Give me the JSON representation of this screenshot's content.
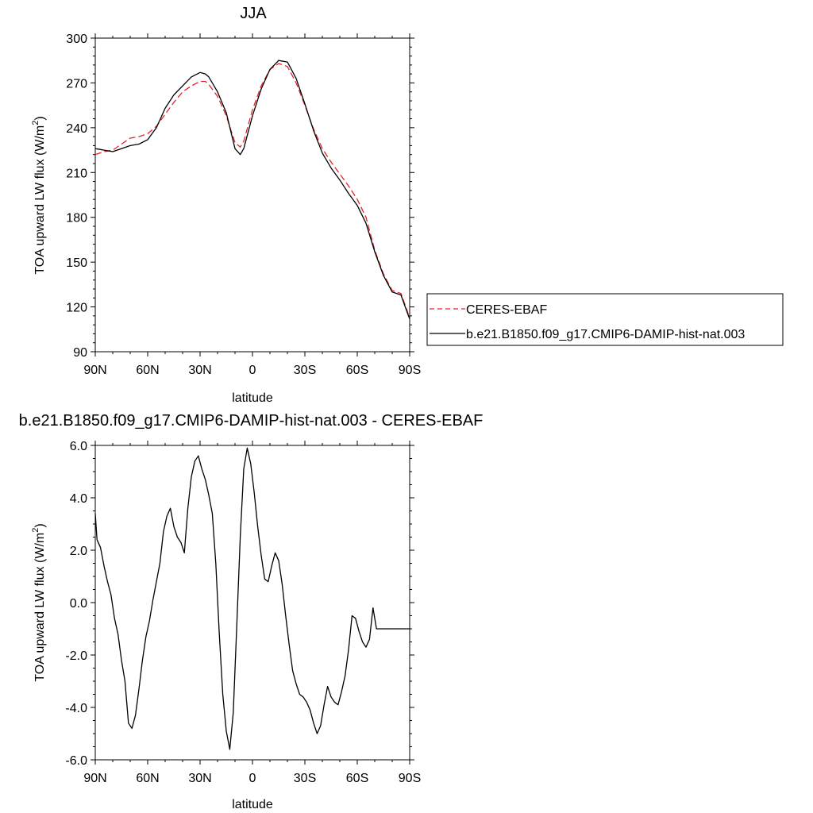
{
  "chart_data": [
    {
      "type": "line",
      "title": "JJA",
      "xlabel": "latitude",
      "ylabel": "TOA upward LW flux (W/m",
      "ylabel_sup": "2",
      "ylabel_end": ")",
      "xlim": [
        90,
        -90
      ],
      "ylim": [
        90,
        300
      ],
      "yticks": [
        90,
        120,
        150,
        180,
        210,
        240,
        270,
        300
      ],
      "ytick_labels": [
        "90",
        "120",
        "150",
        "180",
        "210",
        "240",
        "270",
        "300"
      ],
      "xticks": [
        90,
        60,
        30,
        0,
        -30,
        -60,
        -90
      ],
      "xtick_labels": [
        "90N",
        "60N",
        "30N",
        "0",
        "30S",
        "60S",
        "90S"
      ],
      "legend": "right",
      "series": [
        {
          "name": "CERES-EBAF",
          "color": "#e8202a",
          "dash": true,
          "x": [
            90,
            85,
            80,
            75,
            70,
            65,
            60,
            55,
            50,
            45,
            40,
            35,
            30,
            27,
            25,
            20,
            15,
            10,
            7,
            5,
            0,
            -5,
            -10,
            -15,
            -20,
            -25,
            -30,
            -35,
            -40,
            -45,
            -50,
            -55,
            -60,
            -65,
            -70,
            -75,
            -80,
            -85,
            -89,
            -90
          ],
          "y": [
            222,
            224,
            225,
            229,
            233,
            234,
            236,
            241,
            249,
            257,
            264,
            268,
            271,
            271,
            269,
            261,
            248,
            230,
            227,
            231,
            252,
            268,
            279,
            283,
            281,
            270,
            255,
            239,
            226,
            217,
            209,
            201,
            192,
            180,
            158,
            142,
            131,
            129,
            116,
            113
          ]
        },
        {
          "name": "b.e21.B1850.f09_g17.CMIP6-DAMIP-hist-nat.003",
          "color": "#000000",
          "dash": false,
          "x": [
            90,
            85,
            80,
            75,
            70,
            65,
            60,
            55,
            50,
            45,
            40,
            35,
            30,
            27,
            25,
            20,
            15,
            10,
            7,
            5,
            0,
            -5,
            -10,
            -15,
            -20,
            -25,
            -30,
            -35,
            -40,
            -45,
            -50,
            -55,
            -60,
            -65,
            -70,
            -75,
            -80,
            -85,
            -89,
            -90
          ],
          "y": [
            226,
            225,
            224,
            226,
            228,
            229,
            232,
            240,
            253,
            262,
            268,
            274,
            277,
            276,
            274,
            264,
            250,
            226,
            222,
            226,
            248,
            266,
            279,
            285,
            284,
            273,
            256,
            238,
            223,
            213,
            205,
            196,
            188,
            176,
            157,
            141,
            130,
            128,
            115,
            112
          ]
        }
      ]
    },
    {
      "type": "line",
      "title": "b.e21.B1850.f09_g17.CMIP6-DAMIP-hist-nat.003 - CERES-EBAF",
      "xlabel": "latitude",
      "ylabel": "TOA upward LW flux (W/m",
      "ylabel_sup": "2",
      "ylabel_end": ")",
      "xlim": [
        90,
        -90
      ],
      "ylim": [
        -6,
        6
      ],
      "yticks": [
        -6,
        -4,
        -2,
        0,
        2,
        4,
        6
      ],
      "ytick_labels": [
        "-6.0",
        "-4.0",
        "-2.0",
        "0.0",
        "2.0",
        "4.0",
        "6.0"
      ],
      "xticks": [
        90,
        60,
        30,
        0,
        -30,
        -60,
        -90
      ],
      "xtick_labels": [
        "90N",
        "60N",
        "30N",
        "0",
        "30S",
        "60S",
        "90S"
      ],
      "series": [
        {
          "color": "#000000",
          "x": [
            90,
            89,
            87,
            85,
            83,
            81,
            79,
            77,
            75,
            73,
            71,
            69,
            67,
            65,
            63,
            61,
            59,
            57,
            55,
            53,
            51,
            49,
            47,
            45,
            43,
            41,
            39,
            37,
            35,
            33,
            31,
            29,
            27,
            25,
            23,
            21,
            19,
            17,
            15,
            13,
            11,
            9,
            7,
            5,
            3,
            1,
            -1,
            -3,
            -5,
            -7,
            -9,
            -11,
            -13,
            -15,
            -17,
            -19,
            -21,
            -23,
            -25,
            -27,
            -29,
            -31,
            -33,
            -35,
            -37,
            -39,
            -41,
            -43,
            -45,
            -47,
            -49,
            -51,
            -53,
            -55,
            -57,
            -59,
            -61,
            -63,
            -65,
            -67,
            -69,
            -71,
            -73,
            -75,
            -77,
            -79,
            -81,
            -83,
            -85,
            -87,
            -89,
            -90
          ],
          "y": [
            3.4,
            2.4,
            2.1,
            1.4,
            0.8,
            0.3,
            -0.6,
            -1.2,
            -2.2,
            -3.0,
            -4.6,
            -4.8,
            -4.3,
            -3.3,
            -2.2,
            -1.3,
            -0.7,
            0.1,
            0.8,
            1.5,
            2.7,
            3.3,
            3.6,
            2.9,
            2.5,
            2.3,
            1.9,
            3.6,
            4.8,
            5.4,
            5.6,
            5.1,
            4.7,
            4.1,
            3.4,
            1.5,
            -1.2,
            -3.5,
            -4.9,
            -5.6,
            -4.2,
            -0.9,
            2.5,
            5.1,
            5.9,
            5.3,
            4.2,
            2.9,
            1.8,
            0.9,
            0.8,
            1.4,
            1.9,
            1.6,
            0.7,
            -0.5,
            -1.6,
            -2.6,
            -3.1,
            -3.5,
            -3.6,
            -3.8,
            -4.1,
            -4.6,
            -5.0,
            -4.7,
            -3.9,
            -3.2,
            -3.6,
            -3.8,
            -3.9,
            -3.4,
            -2.8,
            -1.8,
            -0.5,
            -0.6,
            -1.1,
            -1.5,
            -1.7,
            -1.4,
            -0.2,
            -1.0,
            -1.0,
            -1.0,
            -1.0,
            -1.0,
            -1.0,
            -1.0,
            -1.0,
            -1.0,
            -1.0,
            -1.0
          ]
        }
      ]
    }
  ]
}
